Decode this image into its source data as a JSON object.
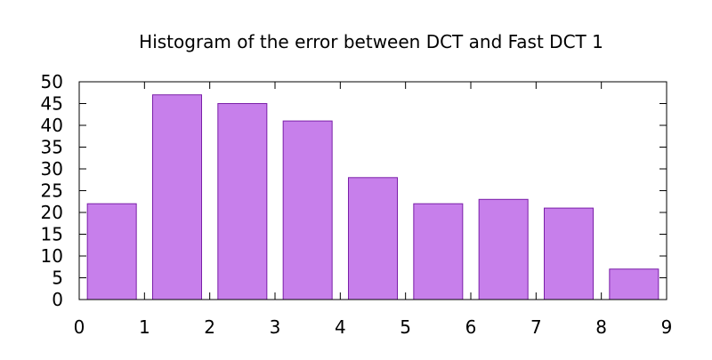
{
  "chart_data": {
    "type": "bar",
    "title": "Histogram of the error between DCT and Fast DCT 1",
    "xlabel": "",
    "ylabel": "",
    "bins": [
      {
        "x_start": 0,
        "x_end": 1,
        "value": 22
      },
      {
        "x_start": 1,
        "x_end": 2,
        "value": 47
      },
      {
        "x_start": 2,
        "x_end": 3,
        "value": 45
      },
      {
        "x_start": 3,
        "x_end": 4,
        "value": 41
      },
      {
        "x_start": 4,
        "x_end": 5,
        "value": 28
      },
      {
        "x_start": 5,
        "x_end": 6,
        "value": 22
      },
      {
        "x_start": 6,
        "x_end": 7,
        "value": 23
      },
      {
        "x_start": 7,
        "x_end": 8,
        "value": 21
      },
      {
        "x_start": 8,
        "x_end": 9,
        "value": 7
      }
    ],
    "xlim": [
      0,
      9
    ],
    "ylim": [
      0,
      50
    ],
    "x_ticks": [
      "0",
      "1",
      "2",
      "3",
      "4",
      "5",
      "6",
      "7",
      "8",
      "9"
    ],
    "y_ticks": [
      "0",
      "5",
      "10",
      "15",
      "20",
      "25",
      "30",
      "35",
      "40",
      "45",
      "50"
    ],
    "grid": false,
    "legend": "none",
    "colors": {
      "bar_fill": "#c77feb",
      "bar_stroke": "#7a1fa8",
      "axis": "#000000"
    }
  }
}
